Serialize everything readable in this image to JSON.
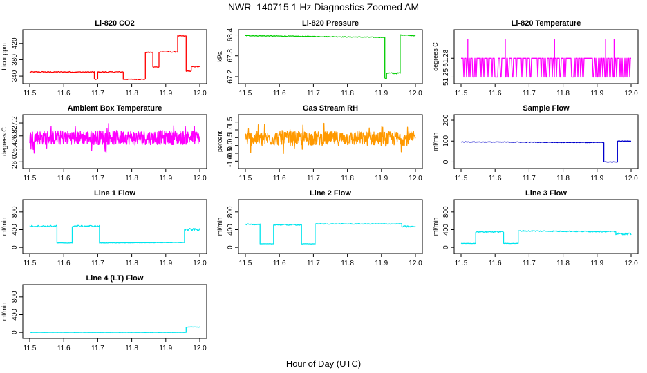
{
  "figure": {
    "title": "NWR_140715  1 Hz Diagnostics Zoomed AM",
    "xlabel": "Hour of Day (UTC)"
  },
  "chart_data": [
    {
      "type": "line",
      "title": "Li-820 CO2",
      "ylabel": "Licor ppm",
      "color": "#ff0000",
      "xlim": [
        11.5,
        12.0
      ],
      "xticks": [
        "11.5",
        "11.6",
        "11.7",
        "11.8",
        "11.9",
        "12.0"
      ],
      "ylim": [
        330,
        445
      ],
      "yticks": [
        "340",
        "380",
        "420"
      ],
      "series": [
        {
          "segments": [
            {
              "x": [
                11.5,
                11.69
              ],
              "y": [
                350,
                350
              ],
              "noise": 1.2
            },
            {
              "x": [
                11.69,
                11.7
              ],
              "y": [
                332,
                332
              ],
              "noise": 1.0
            },
            {
              "x": [
                11.7,
                11.775
              ],
              "y": [
                350,
                350
              ],
              "noise": 1.2
            },
            {
              "x": [
                11.775,
                11.84
              ],
              "y": [
                332,
                332
              ],
              "noise": 1.0
            },
            {
              "x": [
                11.84,
                11.862
              ],
              "y": [
                398,
                398
              ],
              "noise": 1.0
            },
            {
              "x": [
                11.862,
                11.88
              ],
              "y": [
                362,
                362
              ],
              "noise": 1.0
            },
            {
              "x": [
                11.88,
                11.935
              ],
              "y": [
                399,
                399
              ],
              "noise": 1.0
            },
            {
              "x": [
                11.935,
                11.96
              ],
              "y": [
                438,
                438
              ],
              "noise": 1.0
            },
            {
              "x": [
                11.96,
                11.975
              ],
              "y": [
                352,
                352
              ],
              "noise": 1.2
            },
            {
              "x": [
                11.975,
                12.0
              ],
              "y": [
                363,
                363
              ],
              "noise": 1.0
            }
          ]
        }
      ]
    },
    {
      "type": "line",
      "title": "Li-820 Pressure",
      "ylabel": "kPa",
      "color": "#00cc00",
      "xlim": [
        11.5,
        12.0
      ],
      "xticks": [
        "11.5",
        "11.6",
        "11.7",
        "11.8",
        "11.9",
        "12.0"
      ],
      "ylim": [
        67.1,
        68.45
      ],
      "yticks": [
        "67.2",
        "67.8",
        "68.4"
      ],
      "series": [
        {
          "segments": [
            {
              "x": [
                11.5,
                11.91
              ],
              "y": [
                68.38,
                68.33
              ],
              "noise": 0.01
            },
            {
              "x": [
                11.91,
                11.915
              ],
              "y": [
                67.15,
                67.15
              ],
              "noise": 0.02
            },
            {
              "x": [
                11.915,
                11.955
              ],
              "y": [
                67.3,
                67.3
              ],
              "noise": 0.02
            },
            {
              "x": [
                11.955,
                11.96
              ],
              "y": [
                68.4,
                68.4
              ],
              "noise": 0.01
            },
            {
              "x": [
                11.96,
                12.0
              ],
              "y": [
                68.4,
                68.38
              ],
              "noise": 0.01
            }
          ]
        }
      ]
    },
    {
      "type": "line",
      "title": "Li-820 Temperature",
      "ylabel": "degrees C",
      "color": "#ff00ff",
      "xlim": [
        11.5,
        12.0
      ],
      "xticks": [
        "11.5",
        "11.6",
        "11.7",
        "11.8",
        "11.9",
        "12.0"
      ],
      "ylim": [
        51.245,
        51.32
      ],
      "yticks": [
        "51.25",
        "51.28"
      ],
      "series": [
        {
          "segments": [
            {
              "x": [
                11.5,
                12.0
              ],
              "y": [
                51.28,
                51.28
              ],
              "noise": 0.0,
              "dips_to": 51.25,
              "dip_rate": 0.35,
              "spike_to": 51.31,
              "spikes": [
                11.52,
                11.63,
                11.775,
                11.925,
                11.95
              ]
            }
          ]
        }
      ]
    },
    {
      "type": "line",
      "title": "Ambient Box Temperature",
      "ylabel": "degrees C",
      "color": "#ff00ff",
      "xlim": [
        11.5,
        12.0
      ],
      "xticks": [
        "11.5",
        "11.6",
        "11.7",
        "11.8",
        "11.9",
        "12.0"
      ],
      "ylim": [
        25.9,
        27.35
      ],
      "yticks": [
        "26.0",
        "26.4",
        "26.8",
        "27.2"
      ],
      "series": [
        {
          "segments": [
            {
              "x": [
                11.5,
                12.0
              ],
              "y": [
                26.75,
                26.75
              ],
              "noise": 0.22,
              "jagged": true
            }
          ]
        }
      ]
    },
    {
      "type": "line",
      "title": "Gas Stream RH",
      "ylabel": "percent",
      "color": "#ff9900",
      "xlim": [
        11.5,
        12.0
      ],
      "xticks": [
        "11.5",
        "11.6",
        "11.7",
        "11.8",
        "11.9",
        "12.0"
      ],
      "ylim": [
        -1.25,
        1.75
      ],
      "yticks": [
        "-1.0",
        "-0.5",
        "0.0",
        "0.5",
        "1.0",
        "1.5"
      ],
      "series": [
        {
          "segments": [
            {
              "x": [
                11.5,
                12.0
              ],
              "y": [
                0.45,
                0.45
              ],
              "noise": 0.45,
              "jagged": true
            }
          ]
        }
      ]
    },
    {
      "type": "line",
      "title": "Sample Flow",
      "ylabel": "ml/min",
      "color": "#0000cc",
      "xlim": [
        11.5,
        12.0
      ],
      "xticks": [
        "11.5",
        "11.6",
        "11.7",
        "11.8",
        "11.9",
        "12.0"
      ],
      "ylim": [
        -15,
        210
      ],
      "yticks": [
        "0",
        "100",
        "200"
      ],
      "series": [
        {
          "segments": [
            {
              "x": [
                11.5,
                11.92
              ],
              "y": [
                96,
                93
              ],
              "noise": 1.5
            },
            {
              "x": [
                11.92,
                11.96
              ],
              "y": [
                0,
                0
              ],
              "noise": 1.5
            },
            {
              "x": [
                11.96,
                12.0
              ],
              "y": [
                100,
                100
              ],
              "noise": 1.5
            }
          ]
        }
      ]
    },
    {
      "type": "line",
      "title": "Line 1 Flow",
      "ylabel": "ml/min",
      "color": "#00e5ee",
      "xlim": [
        11.5,
        12.0
      ],
      "xticks": [
        "11.5",
        "11.6",
        "11.7",
        "11.8",
        "11.9",
        "12.0"
      ],
      "ylim": [
        -60,
        1000
      ],
      "yticks": [
        "0",
        "400",
        "800"
      ],
      "series": [
        {
          "segments": [
            {
              "x": [
                11.5,
                11.58
              ],
              "y": [
                480,
                480
              ],
              "noise": 18
            },
            {
              "x": [
                11.58,
                11.625
              ],
              "y": [
                100,
                100
              ],
              "noise": 4
            },
            {
              "x": [
                11.625,
                11.705
              ],
              "y": [
                480,
                480
              ],
              "noise": 18
            },
            {
              "x": [
                11.705,
                11.955
              ],
              "y": [
                100,
                110
              ],
              "noise": 4
            },
            {
              "x": [
                11.955,
                12.0
              ],
              "y": [
                400,
                400
              ],
              "noise": 30
            }
          ]
        }
      ]
    },
    {
      "type": "line",
      "title": "Line 2 Flow",
      "ylabel": "ml/min",
      "color": "#00e5ee",
      "xlim": [
        11.5,
        12.0
      ],
      "xticks": [
        "11.5",
        "11.6",
        "11.7",
        "11.8",
        "11.9",
        "12.0"
      ],
      "ylim": [
        -60,
        1000
      ],
      "yticks": [
        "0",
        "400",
        "800"
      ],
      "series": [
        {
          "segments": [
            {
              "x": [
                11.5,
                11.543
              ],
              "y": [
                520,
                520
              ],
              "noise": 12
            },
            {
              "x": [
                11.543,
                11.583
              ],
              "y": [
                80,
                80
              ],
              "noise": 4
            },
            {
              "x": [
                11.583,
                11.665
              ],
              "y": [
                510,
                510
              ],
              "noise": 12
            },
            {
              "x": [
                11.665,
                11.705
              ],
              "y": [
                80,
                80
              ],
              "noise": 4
            },
            {
              "x": [
                11.705,
                11.96
              ],
              "y": [
                530,
                530
              ],
              "noise": 8
            },
            {
              "x": [
                11.96,
                12.0
              ],
              "y": [
                470,
                470
              ],
              "noise": 20
            }
          ]
        }
      ]
    },
    {
      "type": "line",
      "title": "Line 3 Flow",
      "ylabel": "ml/min",
      "color": "#00e5ee",
      "xlim": [
        11.5,
        12.0
      ],
      "xticks": [
        "11.5",
        "11.6",
        "11.7",
        "11.8",
        "11.9",
        "12.0"
      ],
      "ylim": [
        -60,
        1000
      ],
      "yticks": [
        "0",
        "400",
        "800"
      ],
      "series": [
        {
          "segments": [
            {
              "x": [
                11.5,
                11.543
              ],
              "y": [
                90,
                90
              ],
              "noise": 4
            },
            {
              "x": [
                11.543,
                11.625
              ],
              "y": [
                350,
                350
              ],
              "noise": 12
            },
            {
              "x": [
                11.625,
                11.668
              ],
              "y": [
                90,
                90
              ],
              "noise": 4
            },
            {
              "x": [
                11.668,
                11.955
              ],
              "y": [
                370,
                355
              ],
              "noise": 12
            },
            {
              "x": [
                11.955,
                12.0
              ],
              "y": [
                305,
                305
              ],
              "noise": 22
            }
          ]
        }
      ]
    },
    {
      "type": "line",
      "title": "Line 4 (LT) Flow",
      "ylabel": "ml/min",
      "color": "#00e5ee",
      "xlim": [
        11.5,
        12.0
      ],
      "xticks": [
        "11.5",
        "11.6",
        "11.7",
        "11.8",
        "11.9",
        "12.0"
      ],
      "ylim": [
        -60,
        1000
      ],
      "yticks": [
        "0",
        "400",
        "800"
      ],
      "series": [
        {
          "segments": [
            {
              "x": [
                11.5,
                11.96
              ],
              "y": [
                0,
                0
              ],
              "noise": 2
            },
            {
              "x": [
                11.96,
                12.0
              ],
              "y": [
                120,
                120
              ],
              "noise": 6
            }
          ]
        }
      ]
    }
  ]
}
